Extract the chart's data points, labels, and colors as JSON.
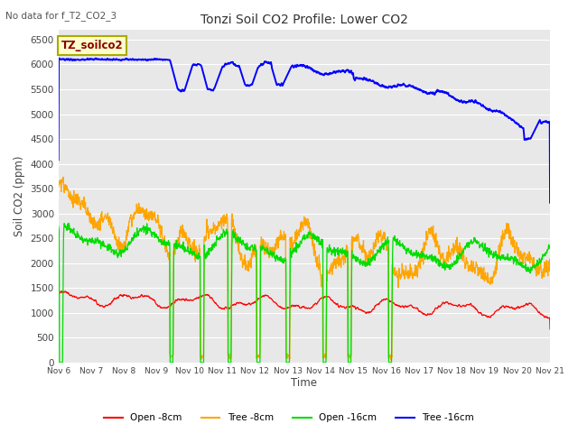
{
  "title": "Tonzi Soil CO2 Profile: Lower CO2",
  "no_data_text": "No data for f_T2_CO2_3",
  "legend_label": "TZ_soilco2",
  "ylabel": "Soil CO2 (ppm)",
  "xlabel": "Time",
  "ylim": [
    0,
    6700
  ],
  "yticks": [
    0,
    500,
    1000,
    1500,
    2000,
    2500,
    3000,
    3500,
    4000,
    4500,
    5000,
    5500,
    6000,
    6500
  ],
  "xtick_labels": [
    "Nov 6",
    "Nov 7",
    "Nov 8",
    "Nov 9",
    "Nov 10",
    "Nov 11",
    "Nov 12",
    "Nov 13",
    "Nov 14",
    "Nov 15",
    "Nov 16",
    "Nov 17",
    "Nov 18",
    "Nov 19",
    "Nov 20",
    "Nov 21"
  ],
  "colors": {
    "open_8cm": "#ff0000",
    "tree_8cm": "#ffa500",
    "open_16cm": "#00dd00",
    "tree_16cm": "#0000ff"
  },
  "legend_entries": [
    "Open -8cm",
    "Tree -8cm",
    "Open -16cm",
    "Tree -16cm"
  ],
  "bg_color": "#e8e8e8",
  "grid_color": "#ffffff"
}
